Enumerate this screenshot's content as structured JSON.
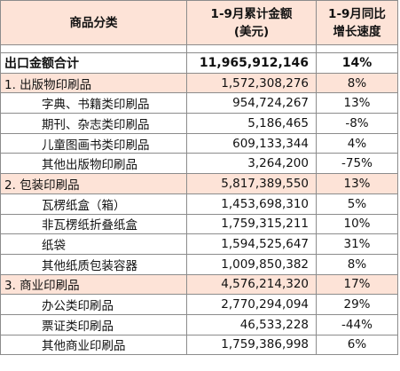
{
  "header": {
    "category": "商品分类",
    "amount_line1": "1-9月累计金额",
    "amount_line2": "(美元)",
    "growth_line1": "1-9月同比",
    "growth_line2": "增长速度"
  },
  "total": {
    "name": "出口金额合计",
    "amount": "11,965,912,146",
    "growth": "14%"
  },
  "rows": [
    {
      "name": "1. 出版物印刷品",
      "amount": "1,572,308,276",
      "growth": "8%",
      "level": "cat"
    },
    {
      "name": "字典、书籍类印刷品",
      "amount": "954,724,267",
      "growth": "13%",
      "level": "sub"
    },
    {
      "name": "期刊、杂志类印刷品",
      "amount": "5,186,465",
      "growth": "-8%",
      "level": "sub"
    },
    {
      "name": "儿童图画书类印刷品",
      "amount": "609,133,344",
      "growth": "4%",
      "level": "sub"
    },
    {
      "name": "其他出版物印刷品",
      "amount": "3,264,200",
      "growth": "-75%",
      "level": "sub"
    },
    {
      "name": "2. 包装印刷品",
      "amount": "5,817,389,550",
      "growth": "13%",
      "level": "cat"
    },
    {
      "name": "瓦楞纸盒（箱）",
      "amount": "1,453,698,310",
      "growth": "5%",
      "level": "sub"
    },
    {
      "name": "非瓦楞纸折叠纸盒",
      "amount": "1,759,315,211",
      "growth": "10%",
      "level": "sub"
    },
    {
      "name": "纸袋",
      "amount": "1,594,525,647",
      "growth": "31%",
      "level": "sub"
    },
    {
      "name": "其他纸质包装容器",
      "amount": "1,009,850,382",
      "growth": "8%",
      "level": "sub"
    },
    {
      "name": "3. 商业印刷品",
      "amount": "4,576,214,320",
      "growth": "17%",
      "level": "cat"
    },
    {
      "name": "办公类印刷品",
      "amount": "2,770,294,094",
      "growth": "29%",
      "level": "sub"
    },
    {
      "name": "票证类印刷品",
      "amount": "46,533,228",
      "growth": "-44%",
      "level": "sub"
    },
    {
      "name": "其他商业印刷品",
      "amount": "1,759,386,998",
      "growth": "6%",
      "level": "sub"
    }
  ]
}
